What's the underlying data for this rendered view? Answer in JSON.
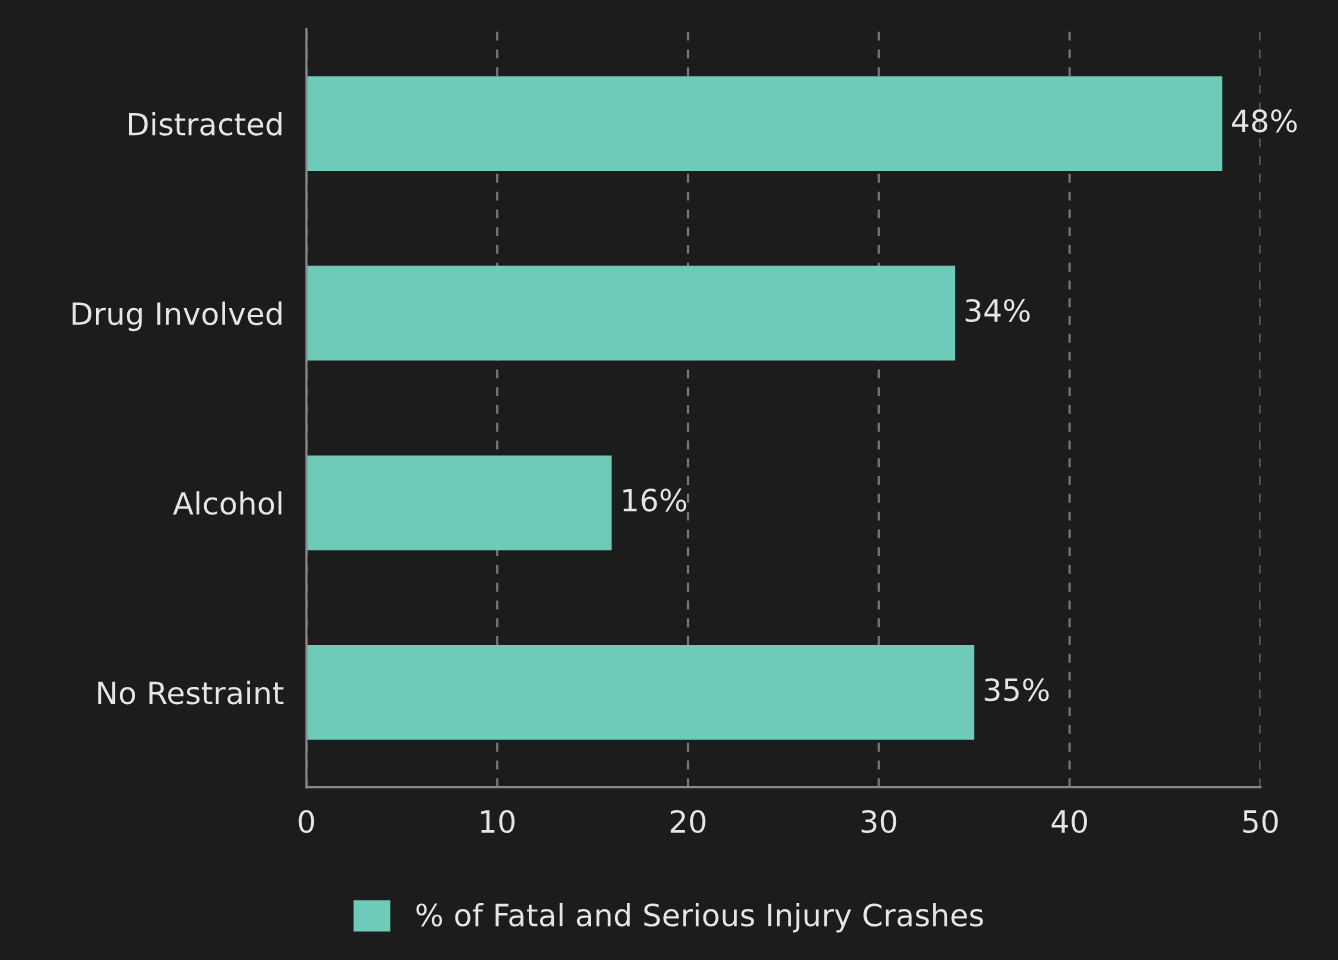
{
  "chart_data": {
    "type": "bar",
    "orientation": "horizontal",
    "categories": [
      "Distracted",
      "Drug Involved",
      "Alcohol",
      "No Restraint"
    ],
    "series": [
      {
        "name": "% of Fatal and Serious Injury Crashes",
        "color": "#6fcbb9",
        "values": [
          48,
          34,
          16,
          35
        ],
        "value_labels": [
          "48%",
          "34%",
          "16%",
          "35%"
        ]
      }
    ],
    "xlim": [
      0,
      50
    ],
    "xticks": [
      0,
      10,
      20,
      30,
      40,
      50
    ],
    "grid": "x",
    "legend": "bottom"
  }
}
